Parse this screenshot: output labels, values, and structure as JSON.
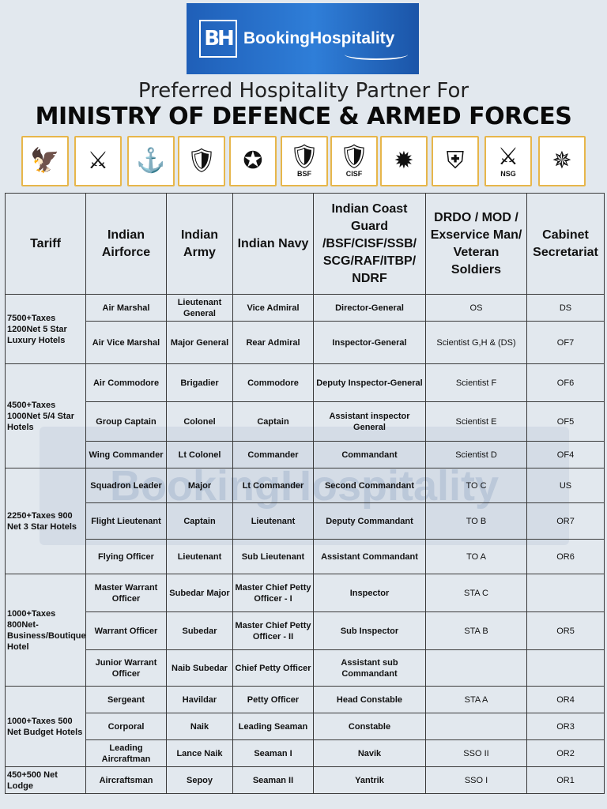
{
  "brand": {
    "mark": "BH",
    "name": "BookingHospitality"
  },
  "tagline": "Preferred Hospitality Partner For",
  "headline": "MINISTRY OF DEFENCE & ARMED FORCES",
  "emblems": [
    {
      "icon": "airforce-emblem-icon",
      "glyph": "🦅",
      "text": ""
    },
    {
      "icon": "army-emblem-icon",
      "glyph": "⚔",
      "text": ""
    },
    {
      "icon": "navy-emblem-icon",
      "glyph": "⚓",
      "text": ""
    },
    {
      "icon": "coast-guard-emblem-icon",
      "glyph": "🛡",
      "text": ""
    },
    {
      "icon": "ministry-of-defence-emblem-icon",
      "glyph": "✪",
      "text": ""
    },
    {
      "icon": "bsf-emblem-icon",
      "glyph": "🛡",
      "text": "BSF"
    },
    {
      "icon": "cisf-emblem-icon",
      "glyph": "🛡",
      "text": "CISF"
    },
    {
      "icon": "ssb-emblem-icon",
      "glyph": "✹",
      "text": ""
    },
    {
      "icon": "raf-emblem-icon",
      "glyph": "⛨",
      "text": ""
    },
    {
      "icon": "nsg-emblem-icon",
      "glyph": "⚔",
      "text": "NSG"
    },
    {
      "icon": "itbp-emblem-icon",
      "glyph": "✵",
      "text": ""
    }
  ],
  "watermark": "BookingHospitality",
  "table": {
    "headers": [
      "Tariff",
      "Indian Airforce",
      "Indian Army",
      "Indian Navy",
      "Indian Coast Guard /BSF/CISF/SSB/ SCG/RAF/ITBP/ NDRF",
      "DRDO / MOD / Exservice Man/ Veteran Soldiers",
      "Cabinet Secretariat"
    ],
    "tariffs": [
      "7500+Taxes 1200Net 5 Star Luxury Hotels",
      "4500+Taxes 1000Net 5/4 Star Hotels",
      "2250+Taxes 900 Net 3 Star Hotels",
      "1000+Taxes 800Net-Business/Boutique Hotel",
      "1000+Taxes 500 Net Budget Hotels",
      "450+500 Net Lodge"
    ],
    "rows": [
      {
        "airforce": "Air Marshal",
        "army": "Lieutenant General",
        "navy": "Vice Admiral",
        "icg": "Director-General",
        "drdo": "OS",
        "cabsec": "DS"
      },
      {
        "airforce": "Air Vice Marshal",
        "army": "Major General",
        "navy": "Rear Admiral",
        "icg": "Inspector-General",
        "drdo": "Scientist G,H & (DS)",
        "cabsec": "OF7"
      },
      {
        "airforce": "Air Commodore",
        "army": "Brigadier",
        "navy": "Commodore",
        "icg": "Deputy Inspector-General",
        "drdo": "Scientist F",
        "cabsec": "OF6"
      },
      {
        "airforce": "Group Captain",
        "army": "Colonel",
        "navy": "Captain",
        "icg": "Assistant inspector General",
        "drdo": "Scientist E",
        "cabsec": "OF5"
      },
      {
        "airforce": "Wing Commander",
        "army": "Lt Colonel",
        "navy": "Commander",
        "icg": "Commandant",
        "drdo": "Scientist D",
        "cabsec": "OF4"
      },
      {
        "airforce": "Squadron Leader",
        "army": "Major",
        "navy": "Lt Commander",
        "icg": "Second Commandant",
        "drdo": "TO C",
        "cabsec": "US"
      },
      {
        "airforce": "Flight Lieutenant",
        "army": "Captain",
        "navy": "Lieutenant",
        "icg": "Deputy Commandant",
        "drdo": "TO B",
        "cabsec": "OR7"
      },
      {
        "airforce": "Flying Officer",
        "army": "Lieutenant",
        "navy": "Sub Lieutenant",
        "icg": "Assistant Commandant",
        "drdo": "TO A",
        "cabsec": "OR6"
      },
      {
        "airforce": "Master Warrant Officer",
        "army": "Subedar Major",
        "navy": "Master Chief Petty Officer - I",
        "icg": "Inspector",
        "drdo": "STA C",
        "cabsec": ""
      },
      {
        "airforce": "Warrant Officer",
        "army": "Subedar",
        "navy": "Master Chief Petty Officer - II",
        "icg": "Sub Inspector",
        "drdo": "STA B",
        "cabsec": "OR5"
      },
      {
        "airforce": "Junior Warrant Officer",
        "army": "Naib Subedar",
        "navy": "Chief Petty Officer",
        "icg": "Assistant sub Commandant",
        "drdo": "",
        "cabsec": ""
      },
      {
        "airforce": "Sergeant",
        "army": "Havildar",
        "navy": "Petty Officer",
        "icg": "Head Constable",
        "drdo": "STA A",
        "cabsec": "OR4"
      },
      {
        "airforce": "Corporal",
        "army": "Naik",
        "navy": "Leading Seaman",
        "icg": "Constable",
        "drdo": "",
        "cabsec": "OR3"
      },
      {
        "airforce": "Leading Aircraftman",
        "army": "Lance Naik",
        "navy": "Seaman I",
        "icg": "Navik",
        "drdo": "SSO II",
        "cabsec": "OR2"
      },
      {
        "airforce": "Aircraftsman",
        "army": "Sepoy",
        "navy": "Seaman II",
        "icg": "Yantrik",
        "drdo": "SSO I",
        "cabsec": "OR1"
      }
    ]
  }
}
